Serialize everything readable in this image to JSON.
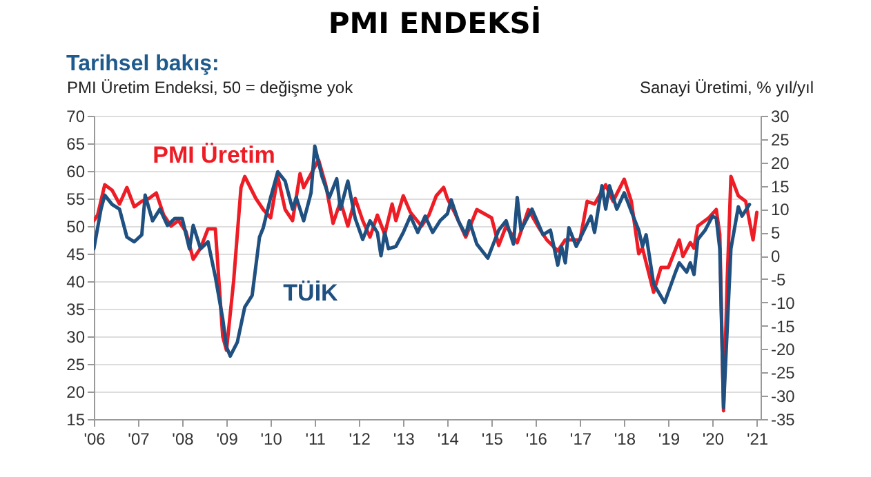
{
  "chart_data": {
    "type": "line",
    "title": "PMI ENDEKSİ",
    "subtitle": "Tarihsel bakış:",
    "ylabel": "PMI Üretim Endeksi, 50 = değişme yok",
    "y2label": "Sanayi Üretimi, % yıl/yıl",
    "xlim": [
      "2006-01",
      "2021-02"
    ],
    "xticks": [
      {
        "value": "2006",
        "label": "'06"
      },
      {
        "value": "2007",
        "label": "'07"
      },
      {
        "value": "2008",
        "label": "'08"
      },
      {
        "value": "2009",
        "label": "'09"
      },
      {
        "value": "2010",
        "label": "'10"
      },
      {
        "value": "2011",
        "label": "'11"
      },
      {
        "value": "2012",
        "label": "'12"
      },
      {
        "value": "2013",
        "label": "'13"
      },
      {
        "value": "2014",
        "label": "'14"
      },
      {
        "value": "2015",
        "label": "'15"
      },
      {
        "value": "2016",
        "label": "'16"
      },
      {
        "value": "2017",
        "label": "'17"
      },
      {
        "value": "2018",
        "label": "'18"
      },
      {
        "value": "2019",
        "label": "'19"
      },
      {
        "value": "2020",
        "label": "'20"
      },
      {
        "value": "2021",
        "label": "'21"
      }
    ],
    "ylim": [
      15,
      70
    ],
    "yticks": [
      15,
      20,
      25,
      30,
      35,
      40,
      45,
      50,
      55,
      60,
      65,
      70
    ],
    "y2lim": [
      -35,
      30
    ],
    "y2ticks": [
      -35,
      -30,
      -25,
      -20,
      -15,
      -10,
      -5,
      0,
      5,
      10,
      15,
      20,
      25,
      30
    ],
    "grid": "y",
    "series": [
      {
        "name": "PMI Üretim",
        "color": "#ee1c25",
        "x": [
          "2006-01",
          "2006-02",
          "2006-04",
          "2006-06",
          "2006-08",
          "2006-10",
          "2006-12",
          "2007-02",
          "2007-04",
          "2007-06",
          "2007-08",
          "2007-10",
          "2007-12",
          "2008-02",
          "2008-04",
          "2008-06",
          "2008-08",
          "2008-10",
          "2008-12",
          "2009-01",
          "2009-03",
          "2009-05",
          "2009-06",
          "2009-09",
          "2009-11",
          "2010-01",
          "2010-03",
          "2010-05",
          "2010-07",
          "2010-09",
          "2010-10",
          "2011-02",
          "2011-04",
          "2011-06",
          "2011-08",
          "2011-10",
          "2011-12",
          "2012-02",
          "2012-04",
          "2012-06",
          "2012-08",
          "2012-10",
          "2012-11",
          "2013-01",
          "2013-03",
          "2013-06",
          "2013-08",
          "2013-10",
          "2013-12",
          "2014-01",
          "2014-03",
          "2014-06",
          "2014-09",
          "2015-01",
          "2015-03",
          "2015-05",
          "2015-08",
          "2015-11",
          "2016-02",
          "2016-04",
          "2016-07",
          "2016-09",
          "2017-01",
          "2017-03",
          "2017-05",
          "2017-08",
          "2017-10",
          "2018-01",
          "2018-03",
          "2018-05",
          "2018-06",
          "2018-09",
          "2018-11",
          "2019-01",
          "2019-04",
          "2019-05",
          "2019-07",
          "2019-08",
          "2019-09",
          "2019-12",
          "2020-02",
          "2020-03",
          "2020-04",
          "2020-05",
          "2020-06",
          "2020-08",
          "2020-10",
          "2020-12",
          "2021-01"
        ],
        "values": [
          51,
          52,
          57.5,
          56.5,
          54,
          57,
          53.5,
          54.5,
          55,
          56,
          52,
          50,
          51,
          49,
          44,
          46,
          49.5,
          49.5,
          30,
          27.5,
          40,
          57,
          59,
          55,
          53,
          51.5,
          59,
          53,
          51,
          59.5,
          57,
          62,
          57.5,
          50.5,
          54.5,
          50,
          55,
          51,
          48,
          52,
          48.5,
          54,
          51,
          55.5,
          52.5,
          50,
          52,
          55.5,
          57,
          55,
          52.5,
          48,
          53,
          51.5,
          46.5,
          50,
          47,
          53,
          49.5,
          47.5,
          45.5,
          47.5,
          47.5,
          54.5,
          54,
          57.5,
          54.5,
          58.5,
          54.5,
          45,
          46,
          38,
          42.5,
          42.5,
          47.5,
          44.5,
          47,
          46,
          50,
          51.5,
          53,
          48.5,
          16.5,
          40,
          59,
          55.5,
          54.5,
          47.5,
          52.5
        ]
      },
      {
        "name": "TÜİK",
        "color": "#1f5080",
        "axis": "y2",
        "x": [
          "2006-01",
          "2006-03",
          "2006-04",
          "2006-06",
          "2006-08",
          "2006-10",
          "2006-12",
          "2007-02",
          "2007-03",
          "2007-05",
          "2007-07",
          "2007-09",
          "2007-11",
          "2008-01",
          "2008-03",
          "2008-04",
          "2008-06",
          "2008-08",
          "2008-10",
          "2008-12",
          "2009-01",
          "2009-02",
          "2009-04",
          "2009-06",
          "2009-08",
          "2009-10",
          "2009-11",
          "2010-01",
          "2010-03",
          "2010-05",
          "2010-07",
          "2010-08",
          "2010-10",
          "2010-12",
          "2011-01",
          "2011-03",
          "2011-05",
          "2011-07",
          "2011-08",
          "2011-10",
          "2011-12",
          "2012-02",
          "2012-04",
          "2012-06",
          "2012-07",
          "2012-08",
          "2012-09",
          "2012-11",
          "2013-01",
          "2013-03",
          "2013-05",
          "2013-07",
          "2013-09",
          "2013-11",
          "2014-01",
          "2014-02",
          "2014-04",
          "2014-06",
          "2014-07",
          "2014-09",
          "2014-12",
          "2015-03",
          "2015-05",
          "2015-07",
          "2015-08",
          "2015-09",
          "2015-12",
          "2016-03",
          "2016-05",
          "2016-07",
          "2016-08",
          "2016-09",
          "2016-10",
          "2016-12",
          "2017-04",
          "2017-05",
          "2017-07",
          "2017-08",
          "2017-09",
          "2017-11",
          "2018-01",
          "2018-03",
          "2018-05",
          "2018-06",
          "2018-07",
          "2018-09",
          "2018-12",
          "2019-03",
          "2019-04",
          "2019-06",
          "2019-07",
          "2019-08",
          "2019-09",
          "2019-11",
          "2020-01",
          "2020-02",
          "2020-03",
          "2020-04",
          "2020-06",
          "2020-08",
          "2020-09",
          "2020-11"
        ],
        "values": [
          1.5,
          10,
          13,
          11,
          10,
          4,
          3,
          4.5,
          13,
          7.5,
          10,
          6.5,
          8,
          8,
          1.5,
          6.5,
          1.5,
          3,
          -4.5,
          -13.5,
          -19.5,
          -21.5,
          -18.5,
          -11,
          -8.5,
          4,
          6,
          12.5,
          18,
          16,
          10,
          12.5,
          7.5,
          13.5,
          23.5,
          17,
          12.5,
          16.5,
          10,
          16,
          8,
          3.5,
          7.5,
          5,
          0,
          5,
          1.5,
          2,
          5,
          8.5,
          5,
          8.5,
          5,
          7.5,
          9,
          12,
          7.5,
          4.5,
          7.5,
          2.5,
          -0.5,
          5.5,
          7.5,
          2.5,
          12.5,
          5.5,
          10,
          4.5,
          5.5,
          -2,
          2,
          -1.5,
          6,
          2,
          8.5,
          5,
          15,
          10,
          15,
          10,
          13.5,
          9.5,
          5.5,
          2,
          4.5,
          -6,
          -10,
          -3.5,
          -1.5,
          -3.5,
          -1.5,
          -4,
          3.5,
          5.5,
          8.5,
          8,
          1.5,
          -32.5,
          1.5,
          10.5,
          8.5,
          11
        ]
      }
    ]
  }
}
